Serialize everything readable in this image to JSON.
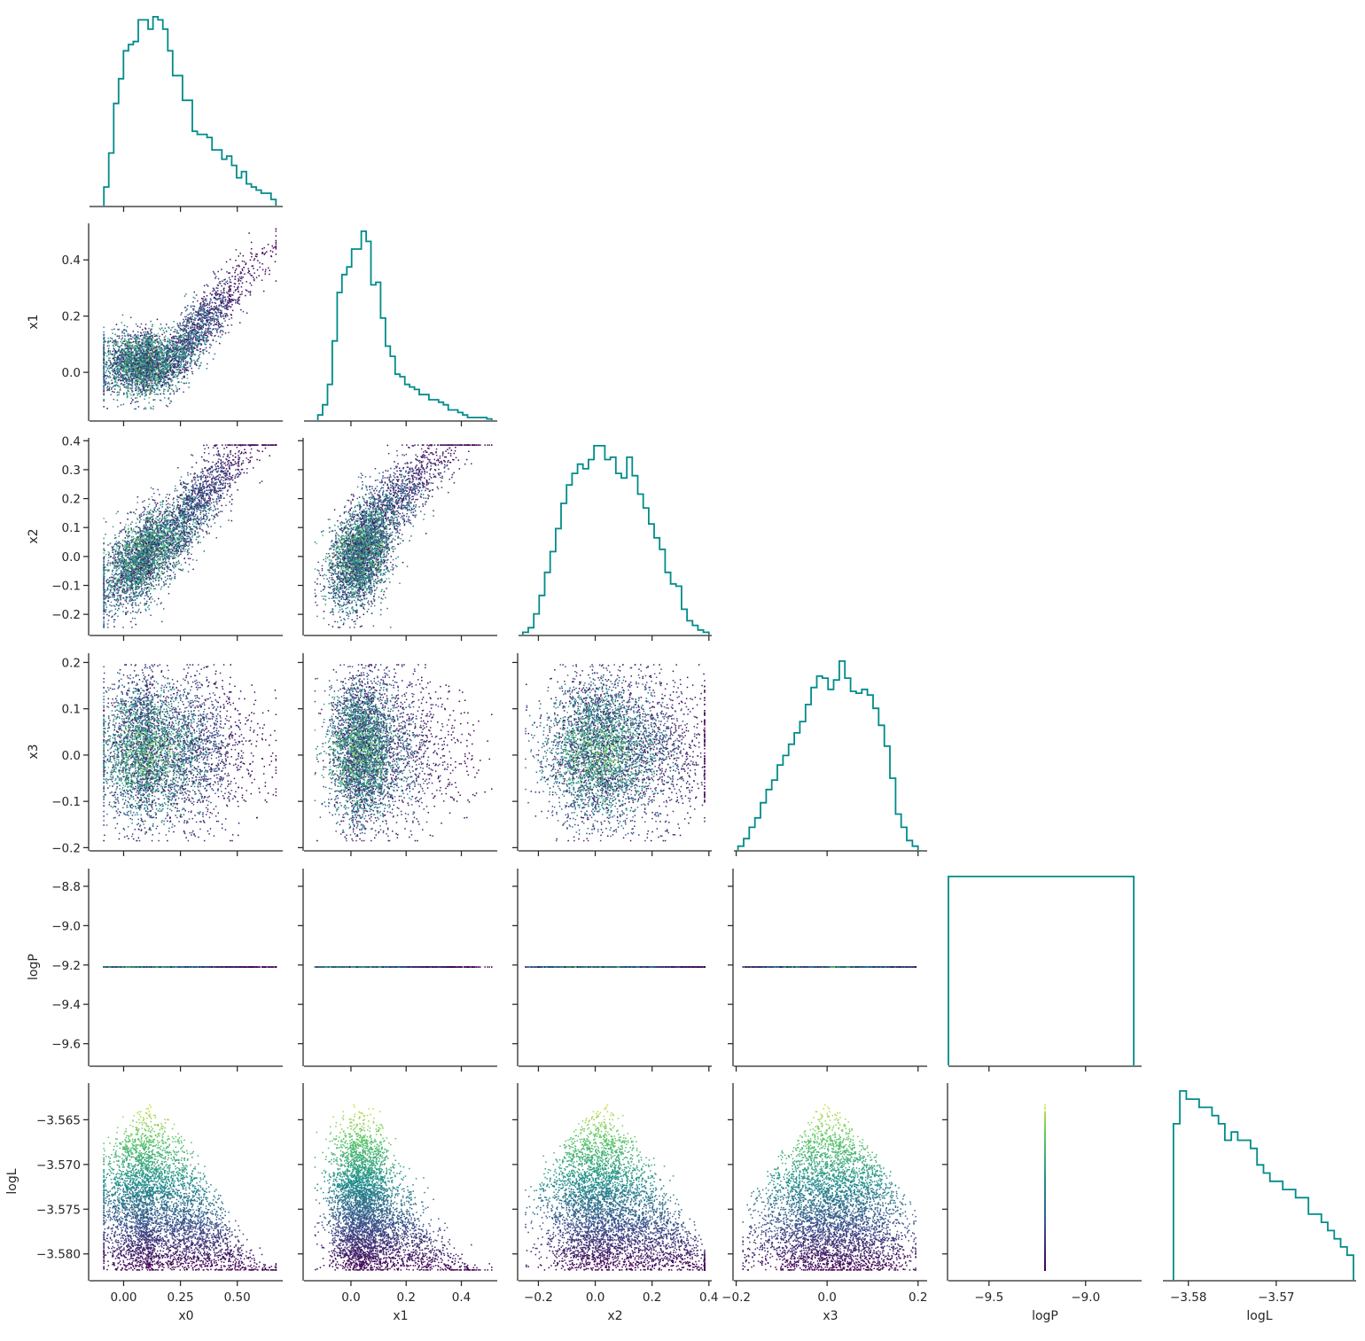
{
  "chart_data": {
    "type": "scatter",
    "title": "",
    "variables": [
      "x0",
      "x1",
      "x2",
      "x3",
      "logP",
      "logL"
    ],
    "hist_color": "#008b8b",
    "scatter_colormap": "viridis",
    "colormap_stops": [
      "#440154",
      "#3b528b",
      "#21918c",
      "#5ec962",
      "#fde725"
    ],
    "color_by": "logL",
    "axis_ranges": {
      "x0": [
        -0.15,
        0.7
      ],
      "x1": [
        -0.17,
        0.53
      ],
      "x2": [
        -0.27,
        0.41
      ],
      "x3": [
        -0.205,
        0.22
      ],
      "logP": [
        -9.71,
        -8.71
      ],
      "logL": [
        -3.5829,
        -3.5609
      ]
    },
    "ticks": {
      "x0": [
        0.0,
        0.25,
        0.5
      ],
      "x1": [
        0.0,
        0.2,
        0.4
      ],
      "x2": [
        -0.2,
        -0.1,
        0.0,
        0.1,
        0.2,
        0.3,
        0.4
      ],
      "x3": [
        -0.2,
        -0.1,
        0.0,
        0.1,
        0.2
      ],
      "logP": [
        -9.6,
        -9.4,
        -9.2,
        -9.0,
        -8.8
      ],
      "logL": [
        -3.58,
        -3.575,
        -3.57,
        -3.565
      ]
    },
    "xtick_labels": {
      "x0": [
        "0.00",
        "0.25",
        "0.50"
      ],
      "x1": [
        "0.0",
        "0.2",
        "0.4"
      ],
      "x2": [
        "−0.2",
        "0.0",
        "0.2",
        "0.4"
      ],
      "x3": [
        "−0.2",
        "0.0",
        "0.2"
      ],
      "logP": [
        "−9.5",
        "−9.0"
      ],
      "logL": [
        "−3.58",
        "−3.57"
      ]
    },
    "xtick_values": {
      "x0": [
        0.0,
        0.25,
        0.5
      ],
      "x1": [
        0.0,
        0.2,
        0.4
      ],
      "x2": [
        -0.2,
        0.0,
        0.2,
        0.4
      ],
      "x3": [
        -0.2,
        0.0,
        0.2
      ],
      "logP": [
        -9.5,
        -9.0
      ],
      "logL": [
        -3.58,
        -3.57
      ]
    },
    "ytick_labels": {
      "x1": [
        "0.0",
        "0.2",
        "0.4"
      ],
      "x2": [
        "−0.2",
        "−0.1",
        "0.0",
        "0.1",
        "0.2",
        "0.3",
        "0.4"
      ],
      "x3": [
        "−0.2",
        "−0.1",
        "0.0",
        "0.1",
        "0.2"
      ],
      "logP": [
        "−9.6",
        "−9.4",
        "−9.2",
        "−9.0",
        "−8.8"
      ],
      "logL": [
        "−3.580",
        "−3.575",
        "−3.570",
        "−3.565"
      ]
    },
    "ytick_values": {
      "x1": [
        0.0,
        0.2,
        0.4
      ],
      "x2": [
        -0.2,
        -0.1,
        0.0,
        0.1,
        0.2,
        0.3,
        0.4
      ],
      "x3": [
        -0.2,
        -0.1,
        0.0,
        0.1,
        0.2
      ],
      "logP": [
        -9.6,
        -9.4,
        -9.2,
        -9.0,
        -8.8
      ],
      "logL": [
        -3.58,
        -3.575,
        -3.57,
        -3.565
      ]
    },
    "histograms": {
      "x0": {
        "edges_range": [
          -0.087,
          0.67
        ],
        "counts": [
          6,
          17,
          33,
          41,
          50,
          52,
          53,
          60,
          60,
          57,
          61,
          60,
          57,
          50,
          42,
          42,
          34,
          34,
          24,
          23,
          23,
          22,
          18,
          18,
          15,
          16,
          13,
          9,
          11,
          7,
          6,
          5,
          4,
          4,
          2
        ]
      },
      "x1": {
        "edges_range": [
          -0.12,
          0.51
        ],
        "counts": [
          2,
          6,
          14,
          31,
          50,
          57,
          60,
          67,
          67,
          74,
          70,
          53,
          54,
          40,
          29,
          25,
          18,
          17,
          14,
          13,
          12,
          10,
          10,
          8,
          8,
          7,
          6,
          4,
          4,
          3,
          2,
          1,
          1,
          1,
          1,
          0.5
        ]
      },
      "x2": {
        "edges_range": [
          -0.255,
          0.4
        ],
        "counts": [
          1,
          3,
          9,
          17,
          27,
          36,
          46,
          57,
          65,
          70,
          74,
          72,
          76,
          82,
          82,
          76,
          77,
          70,
          68,
          77,
          69,
          61,
          55,
          48,
          42,
          37,
          27,
          22,
          21,
          11,
          6,
          4,
          2,
          1
        ]
      },
      "x3": {
        "edges_range": [
          -0.196,
          0.2
        ],
        "counts": [
          2,
          6,
          12,
          17,
          25,
          32,
          37,
          45,
          50,
          56,
          62,
          68,
          77,
          86,
          92,
          91,
          85,
          90,
          100,
          91,
          84,
          83,
          85,
          82,
          75,
          66,
          55,
          38,
          19,
          12,
          5,
          2
        ]
      },
      "logP": {
        "edges_range": [
          -9.71,
          -8.751
        ],
        "counts": [
          1
        ]
      },
      "logL": {
        "edges_range": [
          -3.5817,
          -3.5612
        ],
        "counts": [
          19,
          23,
          22,
          22,
          21,
          21,
          20,
          19,
          17,
          18,
          17,
          17,
          16,
          14,
          13,
          12,
          12,
          11,
          11,
          10,
          10,
          8,
          8,
          7,
          6,
          5,
          4,
          3
        ]
      }
    },
    "point_clouds": {
      "x0": {
        "kind": "skewed",
        "mode": 0.13,
        "spread_lo": 0.11,
        "spread_hi": 0.2,
        "min": -0.087,
        "max": 0.67
      },
      "x1": {
        "kind": "depends_x0",
        "base": 0.03,
        "slope_start": 0.2,
        "slope": 0.9,
        "noise": 0.055,
        "min": -0.13,
        "max": 0.51
      },
      "x2": {
        "kind": "depends_x0x1",
        "intercept": -0.06,
        "a": 0.55,
        "b": 0.4,
        "noise": 0.065,
        "min": -0.245,
        "max": 0.385
      },
      "x3": {
        "kind": "uniformish",
        "center": 0.01,
        "halfwidth": 0.18,
        "min": -0.185,
        "max": 0.195
      },
      "logP": {
        "kind": "constant",
        "value": -9.21
      },
      "logL": {
        "kind": "depends_norm",
        "top": -3.5618,
        "bottom": -3.5818
      }
    },
    "n_points": 4500,
    "grid": false,
    "legend": "none"
  }
}
